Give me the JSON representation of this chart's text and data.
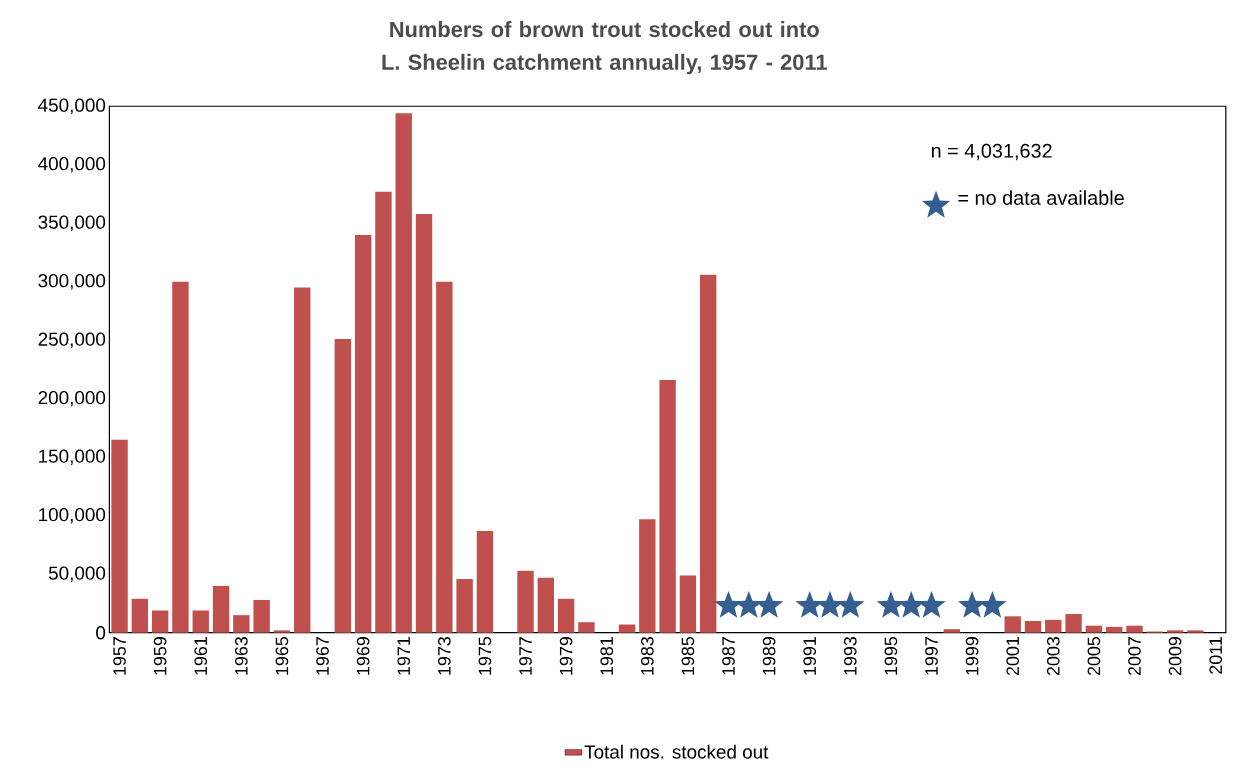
{
  "chart_data": {
    "type": "bar",
    "title": "Numbers of brown trout stocked out into L. Sheelin catchment annually, 1957 - 2011",
    "categories": [
      "1957",
      null,
      "1959",
      null,
      "1961",
      null,
      "1963",
      null,
      "1965",
      null,
      "1967",
      null,
      "1969",
      null,
      "1971",
      null,
      "1973",
      null,
      "1975",
      null,
      "1977",
      null,
      "1979",
      null,
      "1981",
      null,
      "1983",
      null,
      "1985",
      null,
      "1987",
      null,
      "1989",
      null,
      "1991",
      null,
      "1993",
      null,
      "1995",
      null,
      "1997",
      null,
      "1999",
      null,
      "2001",
      null,
      "2003",
      null,
      "2005",
      null,
      "2007",
      null,
      "2009",
      null,
      "2011"
    ],
    "series": [
      {
        "name": "Total nos. stocked out",
        "color": "#c0504d",
        "values": [
          165000,
          29000,
          19000,
          300000,
          19000,
          40000,
          15000,
          28000,
          2000,
          295000,
          0,
          251000,
          340000,
          377000,
          444000,
          358000,
          300000,
          46000,
          87000,
          0,
          53000,
          47000,
          29000,
          9000,
          0,
          7000,
          97000,
          216000,
          49000,
          306000,
          null,
          null,
          null,
          null,
          null,
          null,
          null,
          null,
          null,
          null,
          null,
          3000,
          null,
          null,
          14000,
          10000,
          11000,
          16000,
          6000,
          5000,
          6000,
          1000,
          2000,
          2000,
          0
        ]
      },
      {
        "name": "= no data available",
        "type": "scatter",
        "color": "#365f91",
        "marker": "star",
        "values": [
          null,
          null,
          null,
          null,
          null,
          null,
          null,
          null,
          null,
          null,
          null,
          null,
          null,
          null,
          null,
          null,
          null,
          null,
          null,
          null,
          null,
          null,
          null,
          null,
          null,
          null,
          null,
          null,
          null,
          null,
          23000,
          23000,
          23000,
          null,
          23000,
          23000,
          23000,
          null,
          23000,
          23000,
          23000,
          null,
          23000,
          23000,
          null,
          null,
          null,
          null,
          null,
          null,
          null,
          null,
          null,
          null,
          null
        ]
      }
    ],
    "ylim": [
      0,
      450000
    ],
    "yticks": [
      0,
      {
        "value": 50000,
        "label": "50,000"
      },
      {
        "value": 100000,
        "label": "100,000"
      },
      {
        "value": 150000,
        "label": "150,000"
      },
      {
        "value": 200000,
        "label": "200,000"
      },
      {
        "value": 250000,
        "label": "250,000"
      },
      {
        "value": 300000,
        "label": "300,000"
      },
      {
        "value": 350000,
        "label": "350,000"
      },
      {
        "value": 400000,
        "label": "400,000"
      },
      {
        "value": 450000,
        "label": "450,000"
      }
    ],
    "legend": "bottom",
    "annotations": [
      "n = 4,031,632"
    ]
  }
}
